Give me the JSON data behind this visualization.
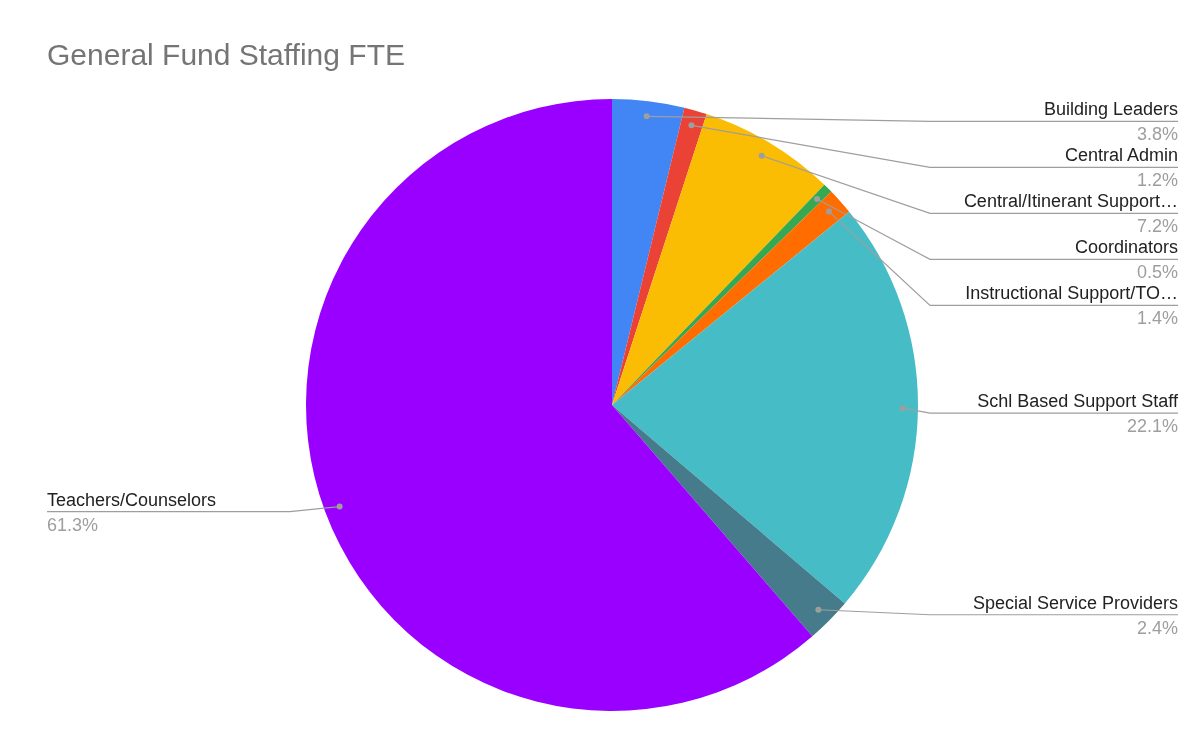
{
  "chart_data": {
    "type": "pie",
    "title": "General Fund Staffing FTE",
    "categories": [
      "Building Leaders",
      "Central Admin",
      "Central/Itinerant Support…",
      "Coordinators",
      "Instructional Support/TO…",
      "Schl Based Support Staff",
      "Special Service Providers",
      "Teachers/Counselors"
    ],
    "values": [
      3.8,
      1.2,
      7.2,
      0.5,
      1.4,
      22.1,
      2.4,
      61.3
    ],
    "colors": [
      "#4285f4",
      "#ea4335",
      "#fbbc04",
      "#34a853",
      "#ff6d01",
      "#46bdc6",
      "#457b8a",
      "#9900ff"
    ],
    "value_labels": [
      "3.8%",
      "1.2%",
      "7.2%",
      "0.5%",
      "1.4%",
      "22.1%",
      "2.4%",
      "61.3%"
    ]
  }
}
